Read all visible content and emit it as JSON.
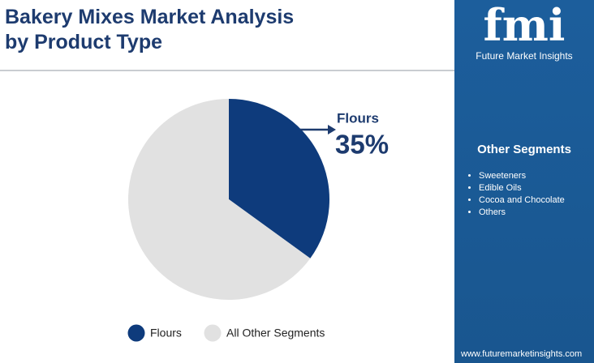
{
  "chart_data": {
    "type": "pie",
    "title": "Bakery Mixes Market Analysis by Product Type",
    "categories": [
      "Flours",
      "All Other Segments"
    ],
    "values": [
      35,
      65
    ],
    "value_labels": [
      "35%",
      null
    ],
    "colors": [
      "#0e3b7c",
      "#e1e1e1"
    ],
    "legend": "bottom"
  },
  "sidebar": {
    "logo": "fmi",
    "brand": "Future Market Insights",
    "heading": "Other Segments",
    "items": [
      "Sweeteners",
      "Edible Oils",
      "Cocoa and Chocolate",
      "Others"
    ],
    "url": "www.futuremarketinsights.com"
  }
}
